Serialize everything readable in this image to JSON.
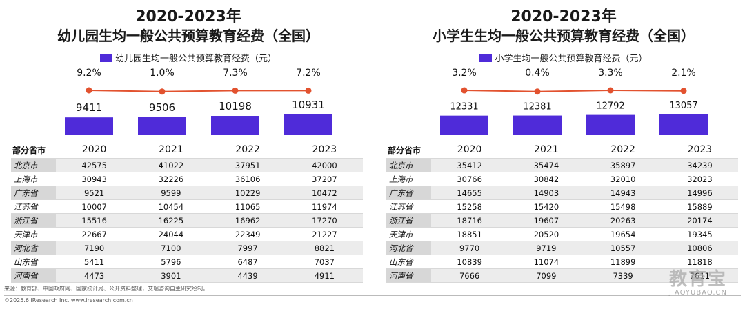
{
  "colors": {
    "bar": "#4f2bd9",
    "line": "#e2522f",
    "marker": "#e2522f"
  },
  "source": "来源：教育部、中国政府网、国家统计局、公开资料整理，艾瑞咨询自主研究绘制。",
  "copyright": "©2025.6 iResearch Inc. www.iresearch.com.cn",
  "watermark": {
    "top": "教育宝",
    "bottom": "JIAOYUBAO.CN"
  },
  "chart_data": [
    {
      "type": "bar",
      "title": "2020-2023年",
      "subtitle": "幼儿园生均一般公共预算教育经费（全国）",
      "legend": "幼儿园生均一般公共预算教育经费（元）",
      "categories": [
        "2020",
        "2021",
        "2022",
        "2023"
      ],
      "values": [
        9411,
        9506,
        10198,
        10931
      ],
      "value_labels": [
        "9411",
        "9506",
        "10198",
        "10931"
      ],
      "growth_labels": [
        "9.2%",
        "1.0%",
        "7.3%",
        "7.2%"
      ],
      "growth_values": [
        9.2,
        1.0,
        7.3,
        7.2
      ],
      "table": {
        "corner": "部分省市",
        "rows": [
          {
            "name": "北京市",
            "values": [
              "42575",
              "41022",
              "37951",
              "42000"
            ]
          },
          {
            "name": "上海市",
            "values": [
              "30943",
              "32226",
              "36106",
              "37207"
            ]
          },
          {
            "name": "广东省",
            "values": [
              "9521",
              "9599",
              "10229",
              "10472"
            ]
          },
          {
            "name": "江苏省",
            "values": [
              "10007",
              "10454",
              "11065",
              "11974"
            ]
          },
          {
            "name": "浙江省",
            "values": [
              "15516",
              "16225",
              "16962",
              "17270"
            ]
          },
          {
            "name": "天津市",
            "values": [
              "22667",
              "24044",
              "22349",
              "21227"
            ]
          },
          {
            "name": "河北省",
            "values": [
              "7190",
              "7100",
              "7997",
              "8821"
            ]
          },
          {
            "name": "山东省",
            "values": [
              "5411",
              "5796",
              "6487",
              "7037"
            ]
          },
          {
            "name": "河南省",
            "values": [
              "4473",
              "3901",
              "4439",
              "4911"
            ]
          }
        ]
      }
    },
    {
      "type": "bar",
      "title": "2020-2023年",
      "subtitle": "小学生生均一般公共预算教育经费（全国）",
      "legend": "小学生均一般公共预算教育经费（元）",
      "categories": [
        "2020",
        "2021",
        "2022",
        "2023"
      ],
      "values": [
        12331,
        12381,
        12792,
        13057
      ],
      "value_labels": [
        "12331",
        "12381",
        "12792",
        "13057"
      ],
      "growth_labels": [
        "3.2%",
        "0.4%",
        "3.3%",
        "2.1%"
      ],
      "growth_values": [
        3.2,
        0.4,
        3.3,
        2.1
      ],
      "table": {
        "corner": "部分省市",
        "rows": [
          {
            "name": "北京市",
            "values": [
              "35412",
              "35474",
              "35897",
              "34239"
            ]
          },
          {
            "name": "上海市",
            "values": [
              "30766",
              "30842",
              "32010",
              "32023"
            ]
          },
          {
            "name": "广东省",
            "values": [
              "14655",
              "14903",
              "14943",
              "14996"
            ]
          },
          {
            "name": "江苏省",
            "values": [
              "15258",
              "15420",
              "15498",
              "15889"
            ]
          },
          {
            "name": "浙江省",
            "values": [
              "18716",
              "19607",
              "20263",
              "20174"
            ]
          },
          {
            "name": "天津市",
            "values": [
              "18851",
              "20520",
              "19654",
              "19345"
            ]
          },
          {
            "name": "河北省",
            "values": [
              "9770",
              "9719",
              "10557",
              "10806"
            ]
          },
          {
            "name": "山东省",
            "values": [
              "10839",
              "11074",
              "11899",
              "11818"
            ]
          },
          {
            "name": "河南省",
            "values": [
              "7666",
              "7099",
              "7339",
              "7611"
            ]
          }
        ]
      }
    }
  ]
}
